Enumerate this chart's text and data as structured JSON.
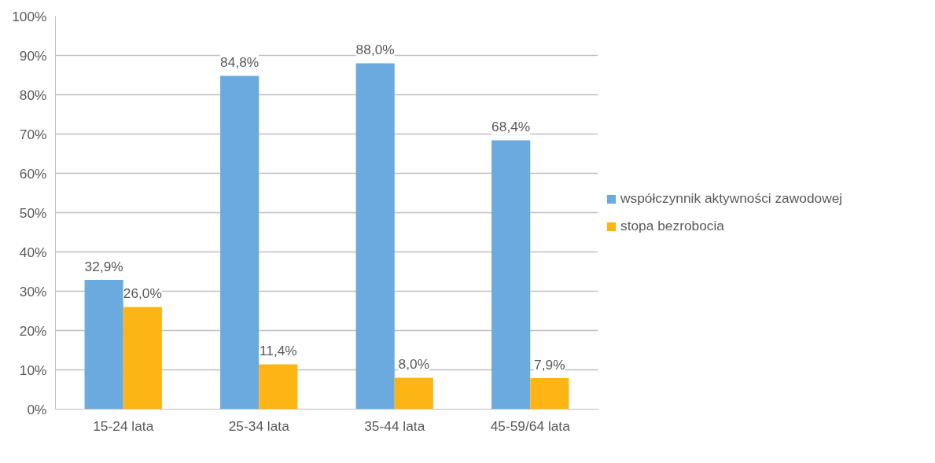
{
  "chart_data": {
    "type": "bar",
    "categories": [
      "15-24 lata",
      "25-34 lata",
      "35-44 lata",
      "45-59/64 lata"
    ],
    "series": [
      {
        "name": "współczynnik aktywności zawodowej",
        "color": "#6aaadf",
        "values": [
          32.9,
          84.8,
          88.0,
          68.4
        ],
        "value_labels": [
          "32,9%",
          "84,8%",
          "88,0%",
          "68,4%"
        ]
      },
      {
        "name": "stopa bezrobocia",
        "color": "#fdb515",
        "values": [
          26.0,
          11.4,
          8.0,
          7.9
        ],
        "value_labels": [
          "26,0%",
          "11,4%",
          "8,0%",
          "7,9%"
        ]
      }
    ],
    "ylim": [
      0,
      100
    ],
    "yticks": [
      {
        "value": 0,
        "label": "0%"
      },
      {
        "value": 10,
        "label": "10%"
      },
      {
        "value": 20,
        "label": "20%"
      },
      {
        "value": 30,
        "label": "30%"
      },
      {
        "value": 40,
        "label": "40%"
      },
      {
        "value": 50,
        "label": "50%"
      },
      {
        "value": 60,
        "label": "60%"
      },
      {
        "value": 70,
        "label": "70%"
      },
      {
        "value": 80,
        "label": "80%"
      },
      {
        "value": 90,
        "label": "90%"
      },
      {
        "value": 100,
        "label": "100%"
      }
    ],
    "grid": "y",
    "legend": "right"
  }
}
